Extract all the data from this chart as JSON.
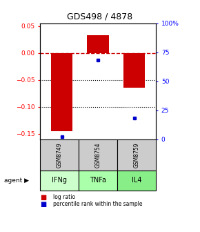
{
  "title": "GDS498 / 4878",
  "samples": [
    "GSM8749",
    "GSM8754",
    "GSM8759"
  ],
  "agents": [
    "IFNg",
    "TNFa",
    "IL4"
  ],
  "log_ratios": [
    -0.145,
    0.033,
    -0.065
  ],
  "percentile_ranks": [
    2.0,
    68.0,
    18.0
  ],
  "ylim_left": [
    -0.16,
    0.055
  ],
  "ylim_right": [
    0,
    100
  ],
  "yticks_left": [
    0.05,
    0,
    -0.05,
    -0.1,
    -0.15
  ],
  "yticks_right": [
    100,
    75,
    50,
    25,
    0
  ],
  "bar_color": "#cc0000",
  "dot_color": "#0000cc",
  "agent_colors": [
    "#ccffcc",
    "#aaffaa",
    "#88ee88"
  ],
  "sample_bg": "#cccccc",
  "legend_bar_label": "log ratio",
  "legend_dot_label": "percentile rank within the sample",
  "zero_line_color": "#cc0000",
  "bar_width": 0.6,
  "x_positions": [
    0,
    1,
    2
  ]
}
